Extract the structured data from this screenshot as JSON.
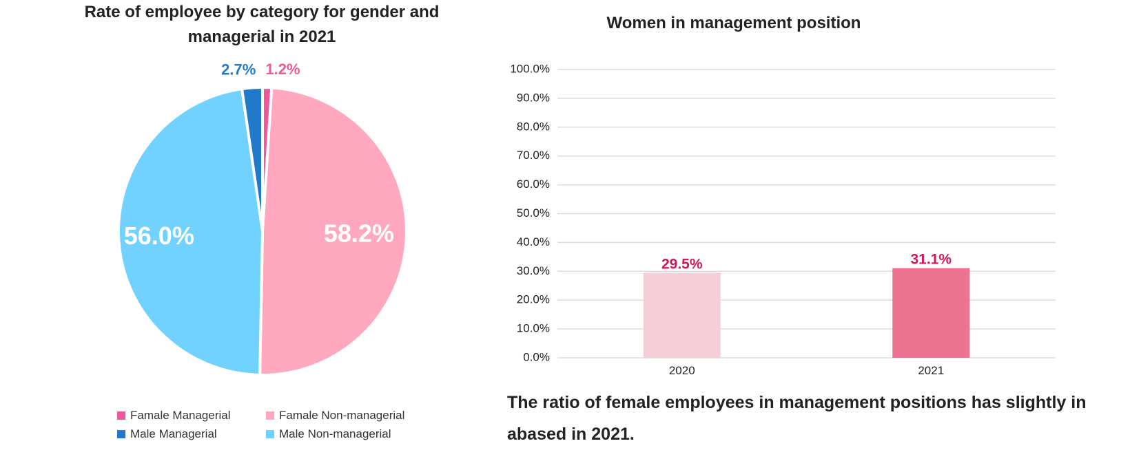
{
  "colors": {
    "female_managerial": "#f0579b",
    "female_nonmanagerial": "#ffa8c0",
    "male_managerial": "#2179c9",
    "male_nonmanagerial": "#72d2ff",
    "bar_2020": "#f5ced8",
    "bar_2021": "#ee7291",
    "bar_label": "#d4145a",
    "grid": "#dcdcdc"
  },
  "pie": {
    "title": "Rate of employee by category for gender and managerial in 2021"
  },
  "bar": {
    "title": "Women in management position"
  },
  "caption": "The ratio of female employees in management positions has slightly in abased in 2021.",
  "chart_data": [
    {
      "type": "pie",
      "title": "Rate of employee by category for gender and managerial in 2021",
      "slices": [
        {
          "name": "Famale Managerial",
          "value": 1.2,
          "label": "1.2%",
          "color": "#f0579b"
        },
        {
          "name": "Famale Non-managerial",
          "value": 58.2,
          "label": "58.2%",
          "color": "#ffa8c0"
        },
        {
          "name": "Male Non-managerial",
          "value": 56.0,
          "label": "56.0%",
          "color": "#72d2ff"
        },
        {
          "name": "Male Managerial",
          "value": 2.7,
          "label": "2.7%",
          "color": "#2179c9"
        }
      ],
      "legend": [
        "Famale Managerial",
        "Famale Non-managerial",
        "Male Managerial",
        "Male Non-managerial"
      ],
      "legend_position": "bottom"
    },
    {
      "type": "bar",
      "title": "Women in management position",
      "categories": [
        "2020",
        "2021"
      ],
      "values": [
        29.5,
        31.1
      ],
      "value_labels": [
        "29.5%",
        "31.1%"
      ],
      "bar_colors": [
        "#f5ced8",
        "#ee7291"
      ],
      "ylim": [
        0,
        100
      ],
      "yticks": [
        "0.0%",
        "10.0%",
        "20.0%",
        "30.0%",
        "40.0%",
        "50.0%",
        "60.0%",
        "70.0%",
        "80.0%",
        "90.0%",
        "100.0%"
      ],
      "grid": true,
      "xlabel": "",
      "ylabel": ""
    }
  ]
}
